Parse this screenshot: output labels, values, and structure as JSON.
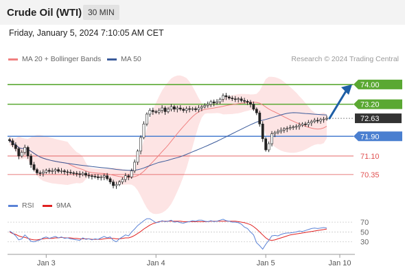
{
  "header": {
    "title": "Crude Oil (WTI)",
    "timeframe": "30 MIN"
  },
  "datetime": "Friday, January 5, 2024 7:10:05 AM CET",
  "credit": "Research © 2024 Trading Central",
  "colors": {
    "support_resistance": "#5aa832",
    "pivot": "#4a7fd0",
    "weak_level": "#e05050",
    "last_price": "#333333",
    "arrow": "#1f5fa6",
    "ma20": "#f08080",
    "bollinger_fill": "#fde4e4",
    "ma50": "#3a5a9a",
    "rsi": "#5a82d6",
    "rsi_ma": "#e02020"
  },
  "chart_data": [
    {
      "type": "candlestick",
      "legend": [
        "MA 20 + Bollinger Bands",
        "MA 50"
      ],
      "x_ticks": [
        "Jan 3",
        "Jan 4",
        "Jan 5",
        "Jan 10"
      ],
      "ylim": [
        69.9,
        74.5
      ],
      "levels": [
        {
          "label": "74.00",
          "value": 74.0,
          "kind": "resistance"
        },
        {
          "label": "73.20",
          "value": 73.2,
          "kind": "resistance"
        },
        {
          "label": "72.63",
          "value": 72.63,
          "kind": "last"
        },
        {
          "label": "71.90",
          "value": 71.9,
          "kind": "pivot"
        },
        {
          "label": "71.10",
          "value": 71.1,
          "kind": "support"
        },
        {
          "label": "70.35",
          "value": 70.35,
          "kind": "support"
        }
      ],
      "close": [
        71.72,
        71.55,
        71.4,
        71.1,
        71.25,
        71.45,
        71.1,
        70.75,
        70.55,
        70.42,
        70.4,
        70.45,
        70.52,
        70.48,
        70.5,
        70.55,
        70.48,
        70.5,
        70.46,
        70.44,
        70.42,
        70.4,
        70.38,
        70.35,
        70.4,
        70.32,
        70.3,
        70.28,
        70.26,
        70.22,
        70.25,
        70.3,
        70.18,
        70.05,
        69.9,
        69.95,
        70.05,
        70.15,
        70.3,
        70.25,
        70.5,
        70.85,
        71.3,
        71.85,
        72.4,
        72.8,
        72.95,
        72.9,
        72.88,
        72.95,
        73.05,
        72.9,
        73.0,
        73.1,
        73.0,
        73.05,
        73.0,
        72.95,
        73.02,
        73.0,
        73.02,
        72.98,
        73.05,
        73.1,
        73.15,
        73.2,
        73.3,
        73.25,
        73.3,
        73.4,
        73.55,
        73.5,
        73.45,
        73.42,
        73.4,
        73.42,
        73.35,
        73.32,
        73.28,
        73.2,
        73.0,
        72.85,
        72.4,
        71.8,
        71.35,
        71.6,
        72.0,
        72.05,
        72.1,
        72.15,
        72.2,
        72.22,
        72.25,
        72.28,
        72.3,
        72.35,
        72.4,
        72.38,
        72.45,
        72.5,
        72.55,
        72.52,
        72.58,
        72.6,
        72.63
      ]
    },
    {
      "type": "line",
      "legend": [
        "RSI",
        "9MA"
      ],
      "y_ticks": [
        70,
        50,
        30
      ],
      "ylim": [
        10,
        80
      ],
      "series": [
        {
          "name": "RSI",
          "values": [
            52,
            48,
            42,
            34,
            36,
            44,
            38,
            31,
            30,
            32,
            34,
            38,
            40,
            37,
            39,
            41,
            38,
            40,
            37,
            38,
            36,
            35,
            34,
            33,
            38,
            35,
            36,
            34,
            36,
            35,
            38,
            41,
            38,
            40,
            33,
            30,
            36,
            40,
            44,
            42,
            50,
            56,
            63,
            68,
            73,
            77,
            77,
            73,
            69,
            70,
            73,
            71,
            72,
            74,
            70,
            71,
            69,
            68,
            70,
            71,
            73,
            72,
            74,
            74,
            72,
            71,
            73,
            71,
            72,
            74,
            76,
            73,
            72,
            70,
            70,
            69,
            66,
            60,
            57,
            50,
            44,
            28,
            22,
            15,
            25,
            33,
            42,
            43,
            42,
            45,
            47,
            48,
            48,
            49,
            50,
            52,
            51,
            53,
            55,
            57,
            58,
            57,
            58,
            59,
            58
          ]
        },
        {
          "name": "9MA",
          "values": [
            50,
            47,
            45,
            42,
            40,
            39,
            37,
            35,
            34,
            34,
            35,
            36,
            37,
            37,
            37,
            38,
            38,
            39,
            38,
            38,
            38,
            37,
            37,
            36,
            36,
            36,
            36,
            35,
            35,
            35,
            35,
            36,
            37,
            37,
            37,
            36,
            36,
            37,
            38,
            38,
            40,
            43,
            47,
            51,
            56,
            60,
            64,
            67,
            69,
            71,
            72,
            72,
            72,
            72,
            72,
            72,
            72,
            71,
            71,
            71,
            71,
            71,
            71,
            71,
            71,
            71,
            72,
            72,
            72,
            72,
            72,
            72,
            72,
            72,
            72,
            71,
            70,
            69,
            67,
            65,
            61,
            56,
            50,
            44,
            38,
            34,
            33,
            34,
            36,
            38,
            40,
            42,
            44,
            45,
            46,
            47,
            48,
            49,
            50,
            51,
            52,
            53,
            54,
            55,
            56
          ]
        }
      ]
    }
  ]
}
